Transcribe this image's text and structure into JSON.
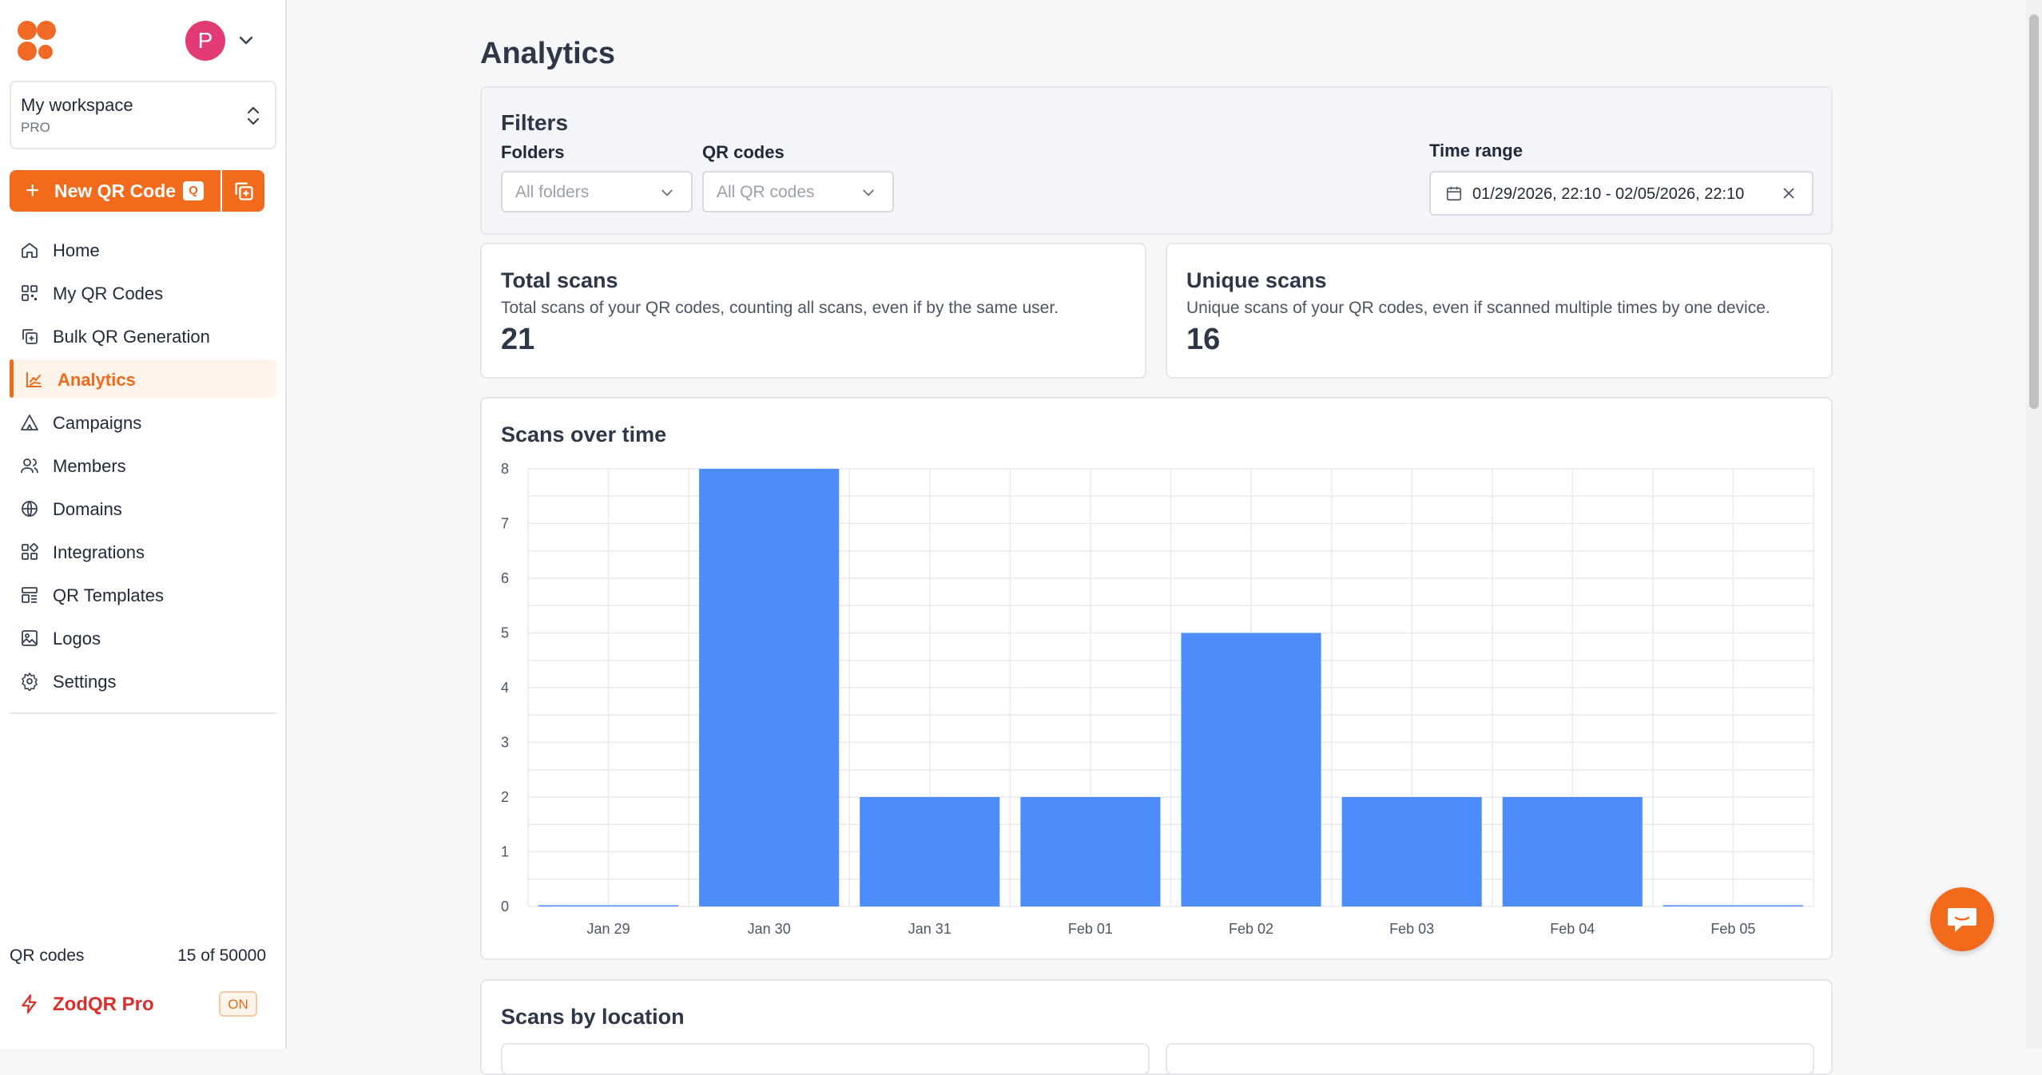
{
  "sidebar": {
    "avatar_initial": "P",
    "workspace": {
      "name": "My workspace",
      "plan": "PRO"
    },
    "new_qr": {
      "label": "New QR Code",
      "shortcut": "Q"
    },
    "items": [
      {
        "label": "Home",
        "icon": "home-icon"
      },
      {
        "label": "My QR Codes",
        "icon": "qr-grid-icon"
      },
      {
        "label": "Bulk QR Generation",
        "icon": "copy-plus-icon"
      },
      {
        "label": "Analytics",
        "icon": "chart-icon",
        "active": true
      },
      {
        "label": "Campaigns",
        "icon": "tent-icon"
      },
      {
        "label": "Members",
        "icon": "users-icon"
      },
      {
        "label": "Domains",
        "icon": "globe-icon"
      },
      {
        "label": "Integrations",
        "icon": "blocks-icon"
      },
      {
        "label": "QR Templates",
        "icon": "template-icon"
      },
      {
        "label": "Logos",
        "icon": "image-icon"
      },
      {
        "label": "Settings",
        "icon": "gear-icon"
      }
    ],
    "qr_count_label": "QR codes",
    "qr_count_value": "15 of 50000",
    "pro": {
      "name": "ZodQR Pro",
      "badge": "ON"
    }
  },
  "main": {
    "title": "Analytics",
    "filters": {
      "heading": "Filters",
      "folders_label": "Folders",
      "folders_placeholder": "All folders",
      "qrcodes_label": "QR codes",
      "qrcodes_placeholder": "All QR codes",
      "time_label": "Time range",
      "time_value": "01/29/2026, 22:10 - 02/05/2026, 22:10"
    },
    "total": {
      "title": "Total scans",
      "desc": "Total scans of your QR codes, counting all scans, even if by the same user.",
      "value": "21"
    },
    "unique": {
      "title": "Unique scans",
      "desc": "Unique scans of your QR codes, even if scanned multiple times by one device.",
      "value": "16"
    },
    "location": {
      "title": "Scans by location"
    }
  },
  "colors": {
    "accent": "#f26a1b",
    "bar": "#4c8dfb"
  },
  "chart_data": {
    "type": "bar",
    "title": "Scans over time",
    "categories": [
      "Jan 29",
      "Jan 30",
      "Jan 31",
      "Feb 01",
      "Feb 02",
      "Feb 03",
      "Feb 04",
      "Feb 05"
    ],
    "values": [
      0,
      8,
      2,
      2,
      5,
      2,
      2,
      0
    ],
    "ylim": [
      0,
      8
    ],
    "yticks": [
      0,
      1,
      2,
      3,
      4,
      5,
      6,
      7,
      8
    ],
    "grid": true,
    "xlabel": "",
    "ylabel": ""
  }
}
